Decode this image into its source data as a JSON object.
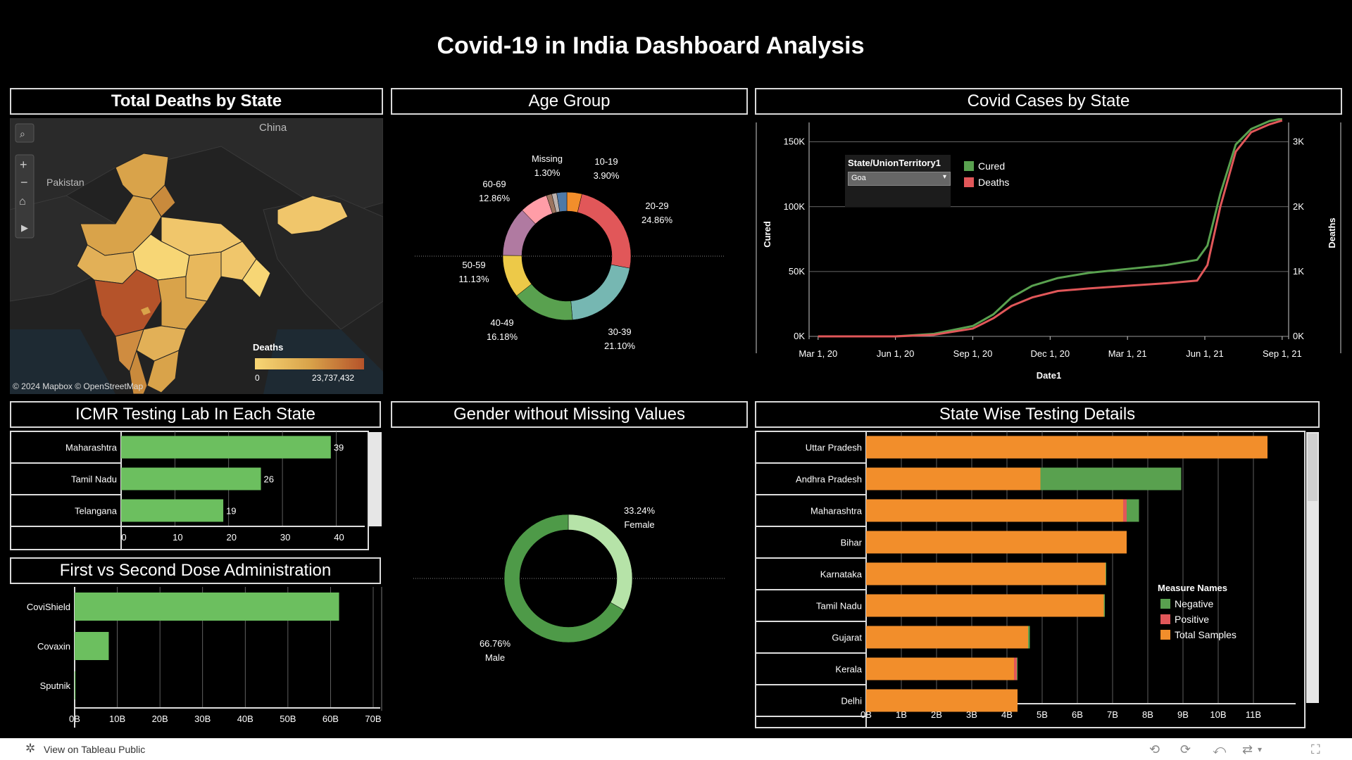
{
  "dashboard_title": "Covid-19 in India Dashboard Analysis",
  "panels": {
    "deaths_map": "Total Deaths by State",
    "age": "Age Group",
    "cases": "Covid Cases by State",
    "icmr": "ICMR Testing Lab In Each State",
    "gender": "Gender without Missing Values",
    "testing": "State Wise Testing Details",
    "dose": "First vs Second Dose Administration"
  },
  "map": {
    "labels": {
      "china": "China",
      "pakistan": "Pakistan"
    },
    "legend_title": "Deaths",
    "legend_min": "0",
    "legend_max": "23,737,432",
    "attribution": "© 2024 Mapbox  © OpenStreetMap",
    "colors": {
      "low": "#f7d675",
      "mid": "#d9a34a",
      "high": "#b5532a"
    },
    "controls": [
      "search-icon",
      "zoom-in-icon",
      "zoom-out-icon",
      "home-icon",
      "play-icon"
    ]
  },
  "chart_data": [
    {
      "type": "pie",
      "id": "age",
      "title": "Age Group",
      "slices": [
        {
          "label": "10-19",
          "pct": "3.90%",
          "value": 3.9,
          "color": "#f28e2b"
        },
        {
          "label": "20-29",
          "pct": "24.86%",
          "value": 24.86,
          "color": "#e15759"
        },
        {
          "label": "30-39",
          "pct": "21.10%",
          "value": 21.1,
          "color": "#76b7b2"
        },
        {
          "label": "40-49",
          "pct": "16.18%",
          "value": 16.18,
          "color": "#59a14f"
        },
        {
          "label": "50-59",
          "pct": "11.13%",
          "value": 11.13,
          "color": "#edc948"
        },
        {
          "label": "60-69",
          "pct": "12.86%",
          "value": 12.86,
          "color": "#b07aa1"
        },
        {
          "label": "",
          "pct": "",
          "value": 7.3,
          "color": "#ff9da7"
        },
        {
          "label": "",
          "pct": "",
          "value": 1.4,
          "color": "#9c755f"
        },
        {
          "label": "Missing",
          "pct": "1.30%",
          "value": 1.3,
          "color": "#bab0ac"
        },
        {
          "label": "",
          "pct": "",
          "value": 2.6,
          "color": "#4e79a7"
        }
      ]
    },
    {
      "type": "line",
      "id": "cases",
      "title": "Covid Cases by State",
      "xlabel": "Date1",
      "ylabel": "Cured",
      "y2label": "Deaths",
      "x_ticks": [
        "Mar 1, 20",
        "Jun 1, 20",
        "Sep 1, 20",
        "Dec 1, 20",
        "Mar 1, 21",
        "Jun 1, 21",
        "Sep 1, 21"
      ],
      "y_ticks": [
        "0K",
        "50K",
        "100K",
        "150K"
      ],
      "y2_ticks": [
        "0K",
        "1K",
        "2K",
        "3K"
      ],
      "ylim": [
        0,
        165000
      ],
      "y2lim": [
        0,
        3300
      ],
      "x_months": [
        0,
        3,
        6,
        9,
        12,
        15,
        18
      ],
      "filter_label": "State/UnionTerritory1",
      "filter_value": "Goa",
      "series": [
        {
          "name": "Cured",
          "color": "#59a14f",
          "axis": "left",
          "x": [
            0,
            3,
            4.5,
            6,
            6.8,
            7.5,
            8.3,
            9.3,
            10.5,
            12,
            13.5,
            14.7,
            15.1,
            15.6,
            16.2,
            16.8,
            17.5,
            18
          ],
          "y": [
            0,
            0,
            2000,
            8000,
            17000,
            30000,
            39000,
            45000,
            49000,
            52000,
            55000,
            59000,
            70000,
            110000,
            148000,
            160000,
            166000,
            168000
          ]
        },
        {
          "name": "Deaths",
          "color": "#e15759",
          "axis": "right",
          "x": [
            0,
            3,
            4.5,
            6,
            6.8,
            7.5,
            8.3,
            9.3,
            10.5,
            12,
            13.5,
            14.7,
            15.1,
            15.6,
            16.2,
            16.8,
            17.5,
            18
          ],
          "y": [
            0,
            0,
            25,
            120,
            280,
            470,
            600,
            700,
            740,
            780,
            820,
            860,
            1100,
            2000,
            2850,
            3150,
            3270,
            3330
          ]
        }
      ]
    },
    {
      "type": "bar",
      "id": "icmr",
      "title": "ICMR Testing Lab In Each State",
      "categories": [
        "Maharashtra",
        "Tamil Nadu",
        "Telangana"
      ],
      "values": [
        39,
        26,
        19
      ],
      "x_ticks": [
        "0",
        "10",
        "20",
        "30",
        "40"
      ],
      "xlim": [
        0,
        44
      ],
      "color": "#6cbf5f"
    },
    {
      "type": "pie",
      "id": "gender",
      "title": "Gender without Missing Values",
      "slices": [
        {
          "label": "Female",
          "pct": "33.24%",
          "value": 33.24,
          "color": "#b6e3a8"
        },
        {
          "label": "Male",
          "pct": "66.76%",
          "value": 66.76,
          "color": "#4e9a48"
        }
      ]
    },
    {
      "type": "bar",
      "id": "testing",
      "title": "State Wise Testing Details",
      "categories": [
        "Uttar Pradesh",
        "Andhra Pradesh",
        "Maharashtra",
        "Bihar",
        "Karnataka",
        "Tamil Nadu",
        "Gujarat",
        "Kerala",
        "Delhi"
      ],
      "x_ticks": [
        "0B",
        "1B",
        "2B",
        "3B",
        "4B",
        "5B",
        "6B",
        "7B",
        "8B",
        "9B",
        "10B",
        "11B"
      ],
      "xlim": [
        0,
        12
      ],
      "legend_title": "Measure Names",
      "series": [
        {
          "name": "Total Samples",
          "color": "#f28e2b",
          "values": [
            11.4,
            4.95,
            7.3,
            7.4,
            6.8,
            6.75,
            4.6,
            4.2,
            4.3
          ]
        },
        {
          "name": "Positive",
          "color": "#e15759",
          "values": [
            0,
            0,
            0.1,
            0,
            0,
            0,
            0,
            0.08,
            0
          ]
        },
        {
          "name": "Negative",
          "color": "#59a14f",
          "values": [
            0,
            4.0,
            0.35,
            0,
            0.02,
            0.03,
            0.05,
            0.02,
            0
          ]
        }
      ],
      "legend_order": [
        "Negative",
        "Positive",
        "Total Samples"
      ]
    },
    {
      "type": "bar",
      "id": "dose",
      "title": "First vs Second Dose Administration",
      "categories": [
        "CoviShield",
        "Covaxin",
        "Sputnik"
      ],
      "values": [
        62,
        8,
        0.2
      ],
      "x_ticks": [
        "0B",
        "10B",
        "20B",
        "30B",
        "40B",
        "50B",
        "60B",
        "70B"
      ],
      "xlim": [
        0,
        70
      ],
      "color": "#6cbf5f"
    }
  ],
  "footer": {
    "view_label": "View on Tableau Public"
  }
}
